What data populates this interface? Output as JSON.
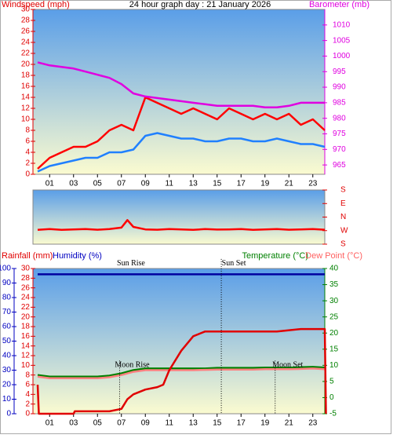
{
  "chart_data": [
    {
      "type": "line",
      "title": "24 hour graph day : 21 January 2026",
      "ylabel": "Windspeed (mph)",
      "y2label": "Barometer (mb)",
      "xlim": [
        0,
        24
      ],
      "xticks": [
        {
          "value": 1,
          "label": "01"
        },
        {
          "value": 3,
          "label": "03"
        },
        {
          "value": 5,
          "label": "05"
        },
        {
          "value": 7,
          "label": "07"
        },
        {
          "value": 9,
          "label": "09"
        },
        {
          "value": 11,
          "label": "11"
        },
        {
          "value": 13,
          "label": "13"
        },
        {
          "value": 15,
          "label": "15"
        },
        {
          "value": 17,
          "label": "17"
        },
        {
          "value": 19,
          "label": "19"
        },
        {
          "value": 21,
          "label": "21"
        },
        {
          "value": 23,
          "label": "23"
        }
      ],
      "ylim": [
        0,
        30
      ],
      "yticks": [
        0,
        2,
        4,
        6,
        8,
        10,
        12,
        14,
        16,
        18,
        20,
        22,
        24,
        26,
        28,
        30
      ],
      "y2lim": [
        962,
        1015
      ],
      "y2ticks": [
        965,
        970,
        975,
        980,
        985,
        990,
        995,
        1000,
        1005,
        1010
      ],
      "ycolor": "#e00000",
      "y2color": "#e000e0",
      "series": [
        {
          "color": "#ff0000",
          "x": [
            0,
            1,
            2,
            3,
            4,
            5,
            6,
            7,
            8,
            9,
            10,
            11,
            12,
            13,
            14,
            15,
            16,
            17,
            18,
            19,
            20,
            21,
            22,
            23,
            24
          ],
          "values": [
            1,
            3,
            4,
            5,
            5,
            6,
            8,
            9,
            8,
            14,
            13,
            12,
            11,
            12,
            11,
            10,
            12,
            11,
            10,
            11,
            10,
            11,
            9,
            10,
            8
          ]
        },
        {
          "color": "#2080ff",
          "x": [
            0,
            1,
            2,
            3,
            4,
            5,
            6,
            7,
            8,
            9,
            10,
            11,
            12,
            13,
            14,
            15,
            16,
            17,
            18,
            19,
            20,
            21,
            22,
            23,
            24
          ],
          "values": [
            0.5,
            1.5,
            2,
            2.5,
            3,
            3,
            4,
            4,
            4.5,
            7,
            7.5,
            7,
            6.5,
            6.5,
            6,
            6,
            6.5,
            6.5,
            6,
            6,
            6.5,
            6,
            5.5,
            5.5,
            5
          ]
        },
        {
          "color": "#e000e0",
          "axis": "y2",
          "x": [
            0,
            1,
            2,
            3,
            4,
            5,
            6,
            7,
            8,
            9,
            10,
            11,
            12,
            13,
            14,
            15,
            16,
            17,
            18,
            19,
            20,
            21,
            22,
            23,
            24
          ],
          "values": [
            998,
            997,
            996.5,
            996,
            995,
            994,
            993,
            991,
            988,
            987,
            986.5,
            986,
            985.5,
            985,
            984.5,
            984,
            984,
            984,
            984,
            983.5,
            983.5,
            984,
            985,
            985,
            985
          ]
        }
      ]
    },
    {
      "type": "line",
      "xlim": [
        0,
        24
      ],
      "ylim": [
        -180,
        180
      ],
      "y2ticks": [
        {
          "value": 180,
          "label": "S"
        },
        {
          "value": 90,
          "label": "E"
        },
        {
          "value": 0,
          "label": "N"
        },
        {
          "value": -90,
          "label": "W"
        },
        {
          "value": -180,
          "label": "S"
        }
      ],
      "y2color": "#e00000",
      "series": [
        {
          "color": "#ff0000",
          "x": [
            0,
            1,
            2,
            3,
            4,
            5,
            6,
            7,
            7.5,
            8,
            9,
            10,
            11,
            12,
            13,
            14,
            15,
            16,
            17,
            18,
            19,
            20,
            21,
            22,
            23,
            24
          ],
          "values": [
            -85,
            -80,
            -85,
            -82,
            -80,
            -84,
            -80,
            -70,
            -20,
            -65,
            -82,
            -84,
            -80,
            -82,
            -85,
            -80,
            -83,
            -82,
            -80,
            -85,
            -82,
            -80,
            -84,
            -82,
            -80,
            -84
          ]
        }
      ]
    },
    {
      "type": "line",
      "ylabel": "Humidity (%)",
      "y3label": "Rainfall (mm)",
      "y2label": "Temperature (°C)",
      "y2label2": "Dew Point (°C)",
      "xlim": [
        0,
        24
      ],
      "xticks": [
        {
          "value": 1,
          "label": "01"
        },
        {
          "value": 3,
          "label": "03"
        },
        {
          "value": 5,
          "label": "05"
        },
        {
          "value": 7,
          "label": "07"
        },
        {
          "value": 9,
          "label": "09"
        },
        {
          "value": 11,
          "label": "11"
        },
        {
          "value": 13,
          "label": "13"
        },
        {
          "value": 15,
          "label": "15"
        },
        {
          "value": 17,
          "label": "17"
        },
        {
          "value": 19,
          "label": "19"
        },
        {
          "value": 21,
          "label": "21"
        },
        {
          "value": 23,
          "label": "23"
        }
      ],
      "ylim": [
        0,
        100
      ],
      "yticks": [
        0,
        10,
        20,
        30,
        40,
        50,
        60,
        70,
        80,
        90,
        100
      ],
      "y3lim": [
        0,
        30
      ],
      "y3ticks": [
        0,
        2,
        4,
        6,
        8,
        10,
        12,
        14,
        16,
        18,
        20,
        22,
        24,
        26,
        28,
        30
      ],
      "y2lim": [
        -5,
        40
      ],
      "y2ticks": [
        -5,
        0,
        5,
        10,
        15,
        20,
        25,
        30,
        35,
        40
      ],
      "ycolor": "#0000c0",
      "y3color": "#e00000",
      "y2color": "#008000",
      "y2color2": "#ff6060",
      "annotations": [
        {
          "text": "Sun Rise",
          "x": 7.8,
          "y": 31
        },
        {
          "text": "Moon Rise",
          "x": 7.9,
          "y": 10
        },
        {
          "text": "Sun Set",
          "x": 16.4,
          "y": 31
        },
        {
          "text": "Moon Set",
          "x": 20.9,
          "y": 10
        }
      ],
      "series": [
        {
          "color": "#0000a0",
          "x": [
            0,
            24
          ],
          "values": [
            96,
            96
          ]
        },
        {
          "color": "#008000",
          "axis": "y2",
          "x": [
            0,
            1,
            2,
            3,
            4,
            5,
            6,
            7,
            8,
            9,
            10,
            11,
            12,
            13,
            14,
            15,
            16,
            17,
            18,
            19,
            20,
            21,
            22,
            23,
            24
          ],
          "values": [
            7,
            6.5,
            6.5,
            6.5,
            6.5,
            6.5,
            6.8,
            7.5,
            8.5,
            9,
            9,
            9,
            9,
            9,
            9,
            9.2,
            9.2,
            9.2,
            9.2,
            9.3,
            9.3,
            9.3,
            9.4,
            9.5,
            9.3
          ]
        },
        {
          "color": "#ff8080",
          "axis": "y2",
          "x": [
            0,
            1,
            2,
            3,
            4,
            5,
            6,
            7,
            8,
            9,
            10,
            11,
            12,
            13,
            14,
            15,
            16,
            17,
            18,
            19,
            20,
            21,
            22,
            23,
            24
          ],
          "values": [
            6.5,
            6,
            6,
            6,
            6,
            6,
            6.3,
            7,
            8,
            8.5,
            8.5,
            8.5,
            8.5,
            8.5,
            8.6,
            8.7,
            8.7,
            8.7,
            8.7,
            8.8,
            8.8,
            8.8,
            8.9,
            9,
            8.8
          ]
        },
        {
          "color": "#e00000",
          "axis": "y3",
          "x": [
            0,
            0.1,
            3,
            3.1,
            6,
            7,
            7.5,
            8,
            9,
            10,
            10.5,
            11,
            12,
            13,
            14,
            20,
            22,
            23,
            24,
            24.1
          ],
          "values": [
            6,
            0,
            0,
            0.5,
            0.5,
            1,
            3,
            4,
            5,
            5.5,
            6,
            9,
            13,
            16,
            17,
            17,
            17.5,
            17.5,
            17.5,
            0
          ]
        }
      ]
    }
  ]
}
